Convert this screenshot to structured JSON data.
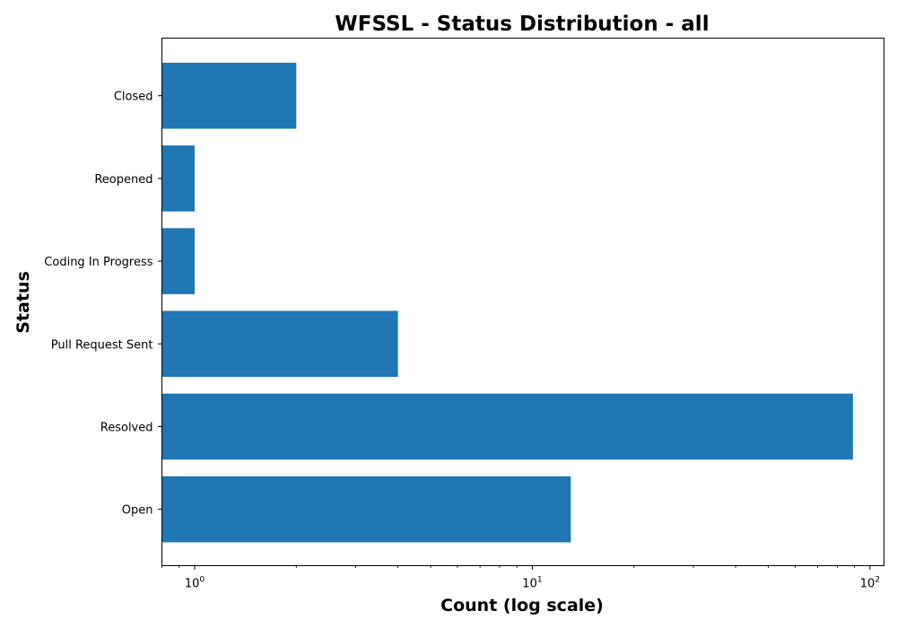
{
  "chart_data": {
    "type": "bar",
    "orientation": "horizontal",
    "title": "WFSSL - Status Distribution - all",
    "xlabel": "Count (log scale)",
    "ylabel": "Status",
    "xscale": "log",
    "xlim": [
      0.8,
      110
    ],
    "categories": [
      "Open",
      "Resolved",
      "Pull Request Sent",
      "Coding In Progress",
      "Reopened",
      "Closed"
    ],
    "values": [
      13,
      89,
      4,
      1,
      1,
      2
    ],
    "x_ticks": [
      {
        "value": 1,
        "base": "10",
        "exp": "0"
      },
      {
        "value": 10,
        "base": "10",
        "exp": "1"
      },
      {
        "value": 100,
        "base": "10",
        "exp": "2"
      }
    ],
    "grid": false,
    "bar_color": "#1f77b4"
  }
}
